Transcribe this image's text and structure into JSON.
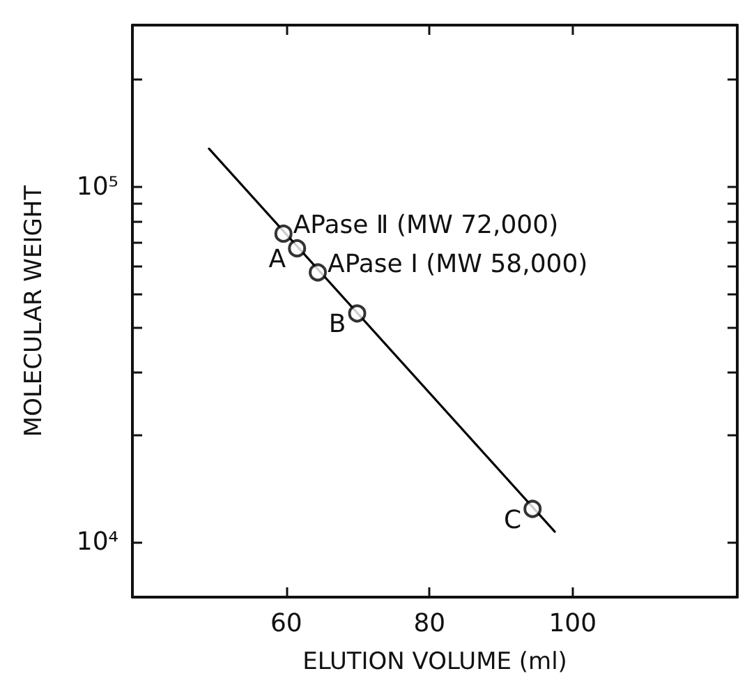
{
  "chart_data": {
    "type": "scatter",
    "xlabel": "ELUTION VOLUME (ml)",
    "ylabel": "MOLECULAR WEIGHT",
    "log": "y",
    "marker": "circle",
    "grid": false,
    "xlim": [
      38.5,
      123
    ],
    "xticks": [
      60,
      80,
      100
    ],
    "ylim": [
      7000,
      285000
    ],
    "yticks": [
      {
        "value": 10000,
        "label": "10⁴"
      },
      {
        "value": 20000,
        "label": null
      },
      {
        "value": 30000,
        "label": null
      },
      {
        "value": 40000,
        "label": null
      },
      {
        "value": 50000,
        "label": null
      },
      {
        "value": 60000,
        "label": null
      },
      {
        "value": 70000,
        "label": null
      },
      {
        "value": 80000,
        "label": null
      },
      {
        "value": 90000,
        "label": null
      },
      {
        "value": 100000,
        "label": "10⁵"
      },
      {
        "value": 200000,
        "label": null
      }
    ],
    "series": [
      {
        "color": "#000000",
        "x": [
          59.6,
          61.5,
          64.4,
          69.9,
          94.4
        ],
        "values": [
          73800,
          67100,
          57400,
          44000,
          12400
        ]
      },
      {
        "type": "line",
        "color": "#000000",
        "marker": "none",
        "line_style": "solid",
        "x": [
          49.2,
          97.5
        ],
        "values": [
          128000,
          10700
        ]
      }
    ],
    "annotations": [
      {
        "text": "APase Ⅱ (MW 72,000)",
        "x": 59.6,
        "y": 73800
      },
      {
        "text": "A",
        "x": 61.5,
        "y": 67100
      },
      {
        "text": "APase Ⅰ (MW 58,000)",
        "x": 64.4,
        "y": 57400
      },
      {
        "text": "B",
        "x": 69.9,
        "y": 44000
      },
      {
        "text": "C",
        "x": 94.4,
        "y": 12400
      }
    ]
  }
}
